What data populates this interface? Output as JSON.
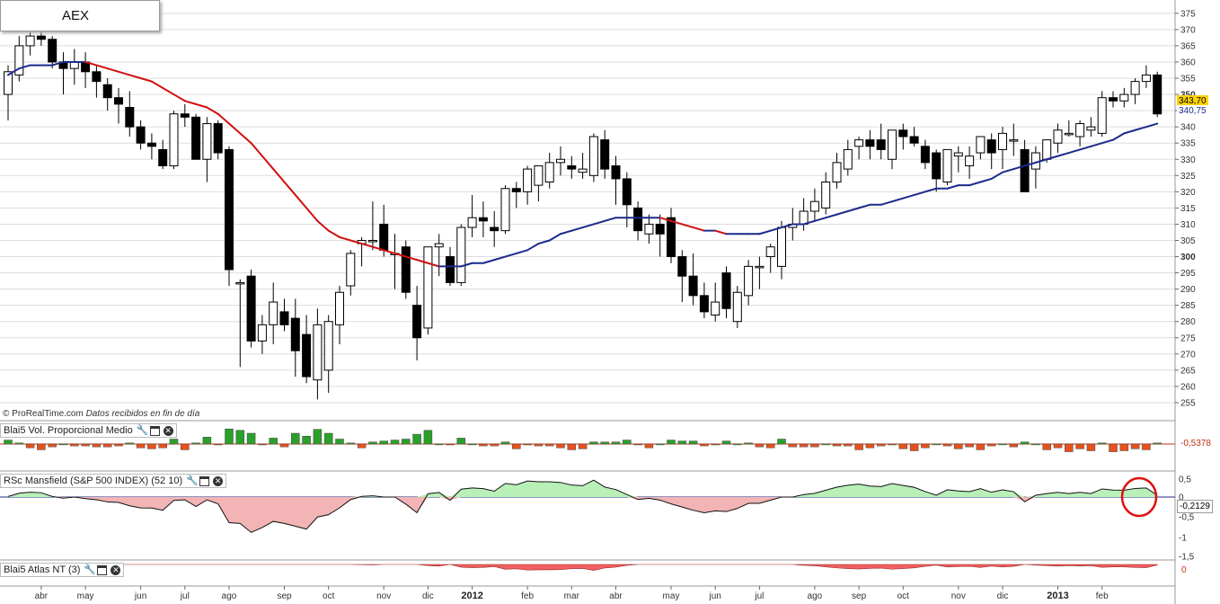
{
  "main_panel": {
    "title": "AEX",
    "credit_source": "© ProRealTime.com",
    "credit_note": "Datos recibidos en fin de día",
    "last_price_label": "343,70",
    "last_ma_label": "340,75",
    "colors": {
      "bull": "#ffffff",
      "bear": "#000000",
      "ma_up": "#1c2a8c",
      "ma_down": "#d01010",
      "grid": "#dddddd"
    }
  },
  "volume_panel": {
    "title": "Blai5 Vol. Proporcional Medio",
    "value_label": "-0,5378",
    "colors": {
      "up": "#2aa02a",
      "down": "#e8501c"
    }
  },
  "rsc_panel": {
    "title": "RSc Mansfield (S&P 500 INDEX) (52 10)",
    "value_label": "-0,2129",
    "y_ticks": [
      "0,5",
      "0",
      "-0,5",
      "-1",
      "-1,5"
    ],
    "colors": {
      "pos_fill": "#b8f0b8",
      "neg_fill": "#f2b4b4",
      "line": "#111111",
      "zero": "#1c2a8c",
      "annotation": "#e01010"
    }
  },
  "atlas_panel": {
    "title": "Blai5 Atlas NT (3)",
    "value_label": "0",
    "colors": {
      "fill": "#ef6060"
    }
  },
  "chart_data": {
    "type": "candlestick",
    "title": "AEX",
    "y_axis": {
      "min": 250,
      "max": 378,
      "ticks": [
        255,
        260,
        265,
        270,
        275,
        280,
        285,
        290,
        295,
        300,
        305,
        310,
        315,
        320,
        325,
        330,
        335,
        340,
        345,
        350,
        355,
        360,
        365,
        370,
        375
      ]
    },
    "x_months": [
      {
        "label": "abr",
        "week": 3
      },
      {
        "label": "may",
        "week": 7
      },
      {
        "label": "jun",
        "week": 12
      },
      {
        "label": "jul",
        "week": 16
      },
      {
        "label": "ago",
        "week": 20
      },
      {
        "label": "sep",
        "week": 25
      },
      {
        "label": "oct",
        "week": 29
      },
      {
        "label": "nov",
        "week": 34
      },
      {
        "label": "dic",
        "week": 38
      },
      {
        "label": "2012",
        "week": 42,
        "year": true
      },
      {
        "label": "feb",
        "week": 47
      },
      {
        "label": "mar",
        "week": 51
      },
      {
        "label": "abr",
        "week": 55
      },
      {
        "label": "may",
        "week": 60
      },
      {
        "label": "jun",
        "week": 64
      },
      {
        "label": "jul",
        "week": 68
      },
      {
        "label": "ago",
        "week": 73
      },
      {
        "label": "sep",
        "week": 77
      },
      {
        "label": "oct",
        "week": 81
      },
      {
        "label": "nov",
        "week": 86
      },
      {
        "label": "dic",
        "week": 90
      },
      {
        "label": "2013",
        "week": 95,
        "year": true
      },
      {
        "label": "feb",
        "week": 99
      }
    ],
    "ohlc": [
      [
        350,
        359,
        342,
        357
      ],
      [
        356,
        368,
        354,
        365
      ],
      [
        365,
        371,
        362,
        368
      ],
      [
        368,
        372,
        365,
        367
      ],
      [
        367,
        368,
        358,
        360
      ],
      [
        360,
        363,
        350,
        358
      ],
      [
        358,
        364,
        353,
        360
      ],
      [
        360,
        363,
        352,
        357
      ],
      [
        357,
        359,
        349,
        354
      ],
      [
        353,
        355,
        345,
        349
      ],
      [
        349,
        352,
        341,
        347
      ],
      [
        346,
        351,
        337,
        340
      ],
      [
        340,
        342,
        333,
        335
      ],
      [
        335,
        338,
        330,
        334
      ],
      [
        333,
        336,
        327,
        328
      ],
      [
        328,
        345,
        327,
        344
      ],
      [
        344,
        347,
        340,
        343
      ],
      [
        343,
        344,
        330,
        330
      ],
      [
        330,
        343,
        323,
        341
      ],
      [
        341,
        342,
        330,
        332
      ],
      [
        333,
        334,
        291,
        296
      ],
      [
        292,
        293,
        266,
        292
      ],
      [
        294,
        296,
        272,
        274
      ],
      [
        274,
        282,
        270,
        279
      ],
      [
        279,
        292,
        273,
        286
      ],
      [
        283,
        287,
        277,
        279
      ],
      [
        281,
        287,
        263,
        271
      ],
      [
        276,
        282,
        261,
        263
      ],
      [
        262,
        284,
        256,
        279
      ],
      [
        265,
        282,
        258,
        280
      ],
      [
        279,
        291,
        273,
        289
      ],
      [
        291,
        302,
        288,
        301
      ],
      [
        304,
        306,
        297,
        305
      ],
      [
        305,
        317,
        302,
        305
      ],
      [
        310,
        316,
        300,
        302
      ],
      [
        301,
        307,
        290,
        301
      ],
      [
        303,
        305,
        287,
        289
      ],
      [
        285,
        291,
        268,
        275
      ],
      [
        278,
        303,
        276,
        303
      ],
      [
        303,
        307,
        294,
        304
      ],
      [
        300,
        303,
        291,
        292
      ],
      [
        292,
        310,
        291,
        309
      ],
      [
        309,
        319,
        306,
        312
      ],
      [
        312,
        317,
        306,
        311
      ],
      [
        309,
        314,
        303,
        308
      ],
      [
        308,
        322,
        307,
        321
      ],
      [
        321,
        323,
        315,
        320
      ],
      [
        320,
        328,
        316,
        327
      ],
      [
        322,
        328,
        317,
        328
      ],
      [
        323,
        332,
        321,
        329
      ],
      [
        329,
        334,
        325,
        330
      ],
      [
        328,
        331,
        324,
        327
      ],
      [
        326,
        332,
        324,
        327
      ],
      [
        325,
        338,
        323,
        337
      ],
      [
        336,
        339,
        324,
        327
      ],
      [
        328,
        331,
        316,
        324
      ],
      [
        324,
        326,
        309,
        316
      ],
      [
        315,
        317,
        305,
        308
      ],
      [
        307,
        313,
        304,
        310
      ],
      [
        310,
        313,
        300,
        307
      ],
      [
        312,
        315,
        298,
        300
      ],
      [
        300,
        302,
        286,
        294
      ],
      [
        294,
        301,
        285,
        288
      ],
      [
        288,
        292,
        281,
        283
      ],
      [
        282,
        292,
        280,
        286
      ],
      [
        295,
        297,
        281,
        284
      ],
      [
        280,
        291,
        278,
        289
      ],
      [
        288,
        299,
        285,
        297
      ],
      [
        297,
        300,
        290,
        297
      ],
      [
        300,
        304,
        295,
        303
      ],
      [
        297,
        311,
        293,
        309
      ],
      [
        309,
        315,
        305,
        310
      ],
      [
        310,
        318,
        308,
        314
      ],
      [
        314,
        321,
        311,
        317
      ],
      [
        315,
        326,
        313,
        323
      ],
      [
        323,
        332,
        321,
        329
      ],
      [
        327,
        336,
        325,
        333
      ],
      [
        334,
        337,
        330,
        336
      ],
      [
        336,
        339,
        330,
        334
      ],
      [
        336,
        341,
        330,
        333
      ],
      [
        330,
        339,
        327,
        339
      ],
      [
        339,
        341,
        333,
        337
      ],
      [
        337,
        340,
        334,
        335
      ],
      [
        334,
        336,
        327,
        329
      ],
      [
        332,
        333,
        320,
        324
      ],
      [
        323,
        333,
        322,
        333
      ],
      [
        331,
        334,
        326,
        332
      ],
      [
        328,
        334,
        324,
        331
      ],
      [
        332,
        337,
        330,
        337
      ],
      [
        336,
        338,
        327,
        332
      ],
      [
        333,
        340,
        327,
        338
      ],
      [
        336,
        341,
        331,
        336
      ],
      [
        333,
        336,
        321,
        320
      ],
      [
        327,
        334,
        321,
        332
      ],
      [
        330,
        336,
        329,
        336
      ],
      [
        335,
        341,
        332,
        339
      ],
      [
        338,
        342,
        337,
        338
      ],
      [
        337,
        342,
        334,
        341
      ],
      [
        339,
        343,
        337,
        340
      ],
      [
        338,
        351,
        337,
        349
      ],
      [
        349,
        351,
        346,
        348
      ],
      [
        348,
        352,
        346,
        350
      ],
      [
        350,
        355,
        347,
        354
      ],
      [
        354,
        359,
        352,
        356
      ],
      [
        356,
        357,
        343,
        344
      ]
    ],
    "ma": [
      356,
      358,
      359,
      359,
      359,
      360,
      360,
      360,
      359,
      358,
      357,
      356,
      355,
      354,
      352,
      350,
      348,
      347,
      346,
      344,
      341,
      338,
      335,
      331,
      327,
      323,
      319,
      315,
      311,
      308,
      306,
      305,
      304,
      303,
      302,
      301,
      300,
      299,
      298,
      297,
      297,
      297,
      298,
      298,
      299,
      300,
      301,
      302,
      304,
      305,
      307,
      308,
      309,
      310,
      311,
      312,
      312,
      312,
      312,
      312,
      311,
      310,
      309,
      308,
      308,
      307,
      307,
      307,
      307,
      308,
      309,
      310,
      310,
      311,
      312,
      313,
      314,
      315,
      316,
      316,
      317,
      318,
      319,
      320,
      321,
      321,
      322,
      322,
      323,
      324,
      326,
      327,
      328,
      329,
      330,
      331,
      332,
      333,
      334,
      335,
      336,
      338,
      339,
      340,
      341
    ]
  }
}
